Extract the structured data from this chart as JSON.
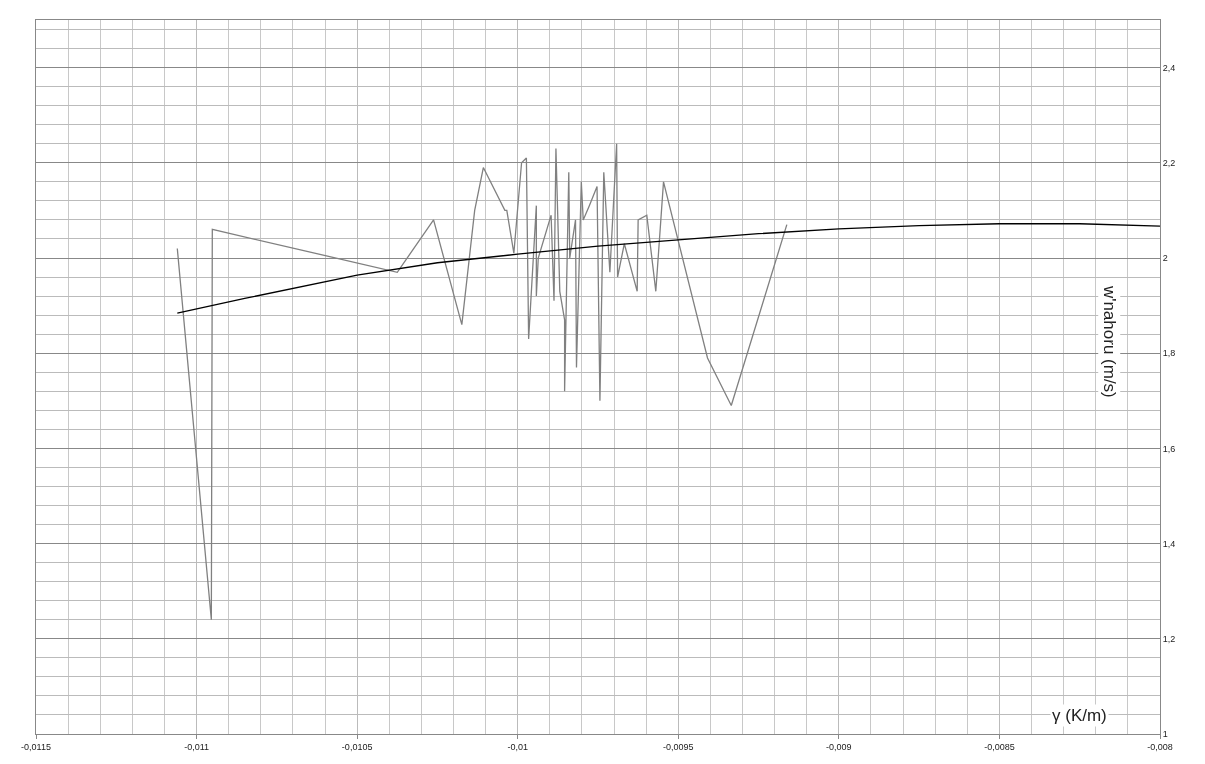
{
  "chart_data": {
    "type": "line",
    "xlabel": "γ (K/m)",
    "ylabel": "w'nahoru (m/s)",
    "xlim": [
      -0.0115,
      -0.008
    ],
    "xticks": [
      {
        "value": -0.0115,
        "label": "-0,0115"
      },
      {
        "value": -0.011,
        "label": "-0,011"
      },
      {
        "value": -0.0105,
        "label": "-0,0105"
      },
      {
        "value": -0.01,
        "label": "-0,01"
      },
      {
        "value": -0.0095,
        "label": "-0,0095"
      },
      {
        "value": -0.009,
        "label": "-0,009"
      },
      {
        "value": -0.0085,
        "label": "-0,0085"
      },
      {
        "value": -0.008,
        "label": "-0,008"
      }
    ],
    "ylim": [
      1,
      2.5
    ],
    "yticks": [
      1,
      {
        "value": 1.2,
        "label": "1,2"
      },
      {
        "value": 1.4,
        "label": "1,4"
      },
      {
        "value": 1.6,
        "label": "1,6"
      },
      {
        "value": 1.8,
        "label": "1,8"
      },
      2,
      {
        "value": 2.2,
        "label": "2,2"
      },
      {
        "value": 2.4,
        "label": "2,4"
      }
    ],
    "grid": true,
    "marker": "none",
    "line_style": "solid",
    "series": [
      {
        "color": "#808080",
        "x": [
          -0.01106,
          -0.010954,
          -0.010951,
          -0.010375,
          -0.010262,
          -0.010174,
          -0.010134,
          -0.010107,
          -0.01004,
          -0.010034,
          -0.010012,
          -0.009988,
          -0.009973,
          -0.009966,
          -0.009942,
          -0.009942,
          -0.009936,
          -0.009896,
          -0.009887,
          -0.009881,
          -0.009869,
          -0.009854,
          -0.009854,
          -0.009841,
          -0.009838,
          -0.00982,
          -0.009817,
          -0.009802,
          -0.009796,
          -0.009777,
          -0.009753,
          -0.009744,
          -0.009732,
          -0.009713,
          -0.009692,
          -0.009689,
          -0.009668,
          -0.009628,
          -0.009625,
          -0.009598,
          -0.00957,
          -0.009546,
          -0.009409,
          -0.009335,
          -0.009162
        ],
        "values": [
          2.02,
          1.24,
          2.06,
          1.97,
          2.08,
          1.86,
          2.1,
          2.19,
          2.1,
          2.1,
          2.01,
          2.2,
          2.21,
          1.83,
          2.11,
          1.92,
          2.0,
          2.09,
          1.91,
          2.23,
          1.93,
          1.87,
          1.72,
          2.18,
          2.0,
          2.08,
          1.77,
          2.16,
          2.08,
          2.11,
          2.15,
          1.7,
          2.18,
          1.97,
          2.24,
          1.96,
          2.03,
          1.93,
          2.08,
          2.09,
          1.93,
          2.16,
          1.79,
          1.69,
          2.07
        ]
      },
      {
        "color": "#000000",
        "x": [
          -0.01106,
          -0.01085,
          -0.0105,
          -0.01025,
          -0.01,
          -0.00975,
          -0.0095,
          -0.00925,
          -0.009,
          -0.00875,
          -0.0085,
          -0.00825,
          -0.008
        ],
        "values": [
          1.884,
          1.915,
          1.964,
          1.99,
          2.008,
          2.025,
          2.038,
          2.051,
          2.061,
          2.068,
          2.072,
          2.072,
          2.067
        ]
      }
    ]
  }
}
